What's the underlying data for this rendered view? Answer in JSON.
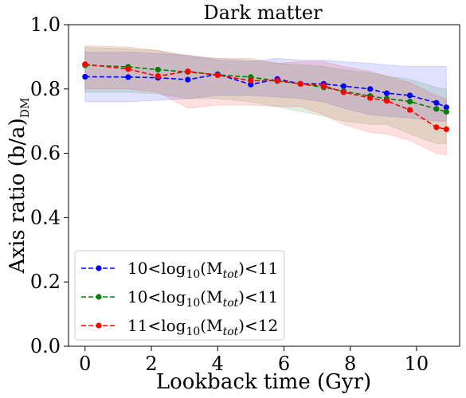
{
  "chart_data": {
    "type": "line",
    "title": "Dark matter",
    "xlabel": "Lookback time (Gyr)",
    "ylabel": {
      "main": "Axis ratio (b/a)",
      "sub": "DM"
    },
    "xlim": [
      -0.5,
      11.3
    ],
    "ylim": [
      0.0,
      1.0
    ],
    "xticks": [
      0,
      2,
      4,
      6,
      8,
      10
    ],
    "yticks": [
      0.0,
      0.2,
      0.4,
      0.6,
      0.8,
      1.0
    ],
    "xtick_labels": [
      "0",
      "2",
      "4",
      "6",
      "8",
      "10"
    ],
    "ytick_labels": [
      "0.0",
      "0.2",
      "0.4",
      "0.6",
      "0.8",
      "1.0"
    ],
    "grid": false,
    "legend_position": "lower-left",
    "x": [
      0.0,
      1.3,
      2.2,
      3.1,
      4.0,
      5.0,
      5.8,
      6.5,
      7.2,
      7.8,
      8.6,
      9.1,
      9.8,
      10.6,
      10.9
    ],
    "series": [
      {
        "name": {
          "pre": "10<log",
          "sub1": "10",
          "mid": "(M",
          "sub2": "tot",
          "post": ")<11"
        },
        "color": "#0000ff",
        "values": [
          0.838,
          0.837,
          0.835,
          0.829,
          0.846,
          0.814,
          0.831,
          0.816,
          0.816,
          0.809,
          0.8,
          0.787,
          0.78,
          0.757,
          0.743
        ],
        "lower": [
          0.76,
          0.76,
          0.765,
          0.77,
          0.78,
          0.78,
          0.775,
          0.77,
          0.76,
          0.74,
          0.72,
          0.715,
          0.71,
          0.7,
          0.7
        ],
        "upper": [
          0.915,
          0.915,
          0.91,
          0.905,
          0.89,
          0.885,
          0.895,
          0.89,
          0.89,
          0.885,
          0.88,
          0.875,
          0.87,
          0.87,
          0.87
        ]
      },
      {
        "name": {
          "pre": "10<log",
          "sub1": "10",
          "mid": "(M",
          "sub2": "tot",
          "post": ")<11"
        },
        "color": "#008000",
        "values": [
          0.874,
          0.869,
          0.86,
          0.853,
          0.844,
          0.837,
          0.825,
          0.816,
          0.805,
          0.793,
          0.778,
          0.77,
          0.761,
          0.738,
          0.729
        ],
        "lower": [
          0.79,
          0.79,
          0.785,
          0.77,
          0.77,
          0.76,
          0.745,
          0.73,
          0.715,
          0.7,
          0.69,
          0.69,
          0.66,
          0.63,
          0.63
        ],
        "upper": [
          0.93,
          0.925,
          0.92,
          0.9,
          0.895,
          0.89,
          0.88,
          0.875,
          0.87,
          0.86,
          0.85,
          0.84,
          0.83,
          0.805,
          0.8
        ]
      },
      {
        "name": {
          "pre": "11<log",
          "sub1": "10",
          "mid": "(M",
          "sub2": "tot",
          "post": ")<12"
        },
        "color": "#ff0000",
        "values": [
          0.877,
          0.862,
          0.84,
          0.855,
          0.843,
          0.826,
          0.826,
          0.816,
          0.81,
          0.79,
          0.772,
          0.763,
          0.735,
          0.681,
          0.675
        ],
        "lower": [
          0.8,
          0.8,
          0.79,
          0.74,
          0.75,
          0.75,
          0.745,
          0.745,
          0.72,
          0.69,
          0.665,
          0.66,
          0.64,
          0.6,
          0.595
        ],
        "upper": [
          0.935,
          0.93,
          0.92,
          0.905,
          0.895,
          0.895,
          0.88,
          0.885,
          0.885,
          0.87,
          0.855,
          0.84,
          0.82,
          0.78,
          0.77
        ]
      }
    ]
  }
}
